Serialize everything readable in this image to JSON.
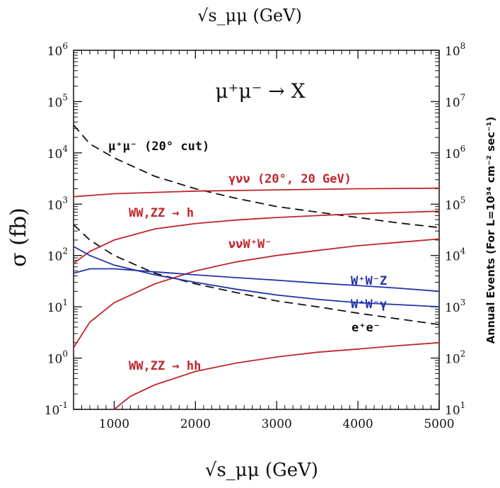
{
  "chart_data": {
    "type": "line",
    "title": "μ⁺μ⁻ → X",
    "top_axis_label": "√s_μμ (GeV)",
    "xlabel": "√s_μμ (GeV)",
    "ylabel": "σ (fb)",
    "y2label": "Annual Events (For L=10³⁴ cm⁻² sec⁻¹)",
    "xlim": [
      500,
      5000
    ],
    "ylim_log10": [
      -1,
      6
    ],
    "y2lim_log10": [
      1,
      8
    ],
    "yscale": "log",
    "x_ticks": [
      1000,
      2000,
      3000,
      4000,
      5000
    ],
    "x_tick_labels": [
      "1000",
      "2000",
      "3000",
      "4000",
      "5000"
    ],
    "y_tick_base": "10",
    "y_tick_exponents": [
      "-1",
      "0",
      "1",
      "2",
      "3",
      "4",
      "5",
      "6"
    ],
    "y2_tick_base": "10",
    "y2_tick_exponents": [
      "1",
      "2",
      "3",
      "4",
      "5",
      "6",
      "7",
      "8"
    ],
    "grid": false,
    "series": [
      {
        "name": "μ⁺μ⁻ (20° cut)",
        "color": "#111111",
        "style": "dashed",
        "x": [
          500,
          700,
          1000,
          1500,
          2000,
          2500,
          3000,
          3500,
          4000,
          4500,
          5000
        ],
        "y": [
          35000,
          15000,
          8000,
          3500,
          2000,
          1300,
          900,
          700,
          550,
          430,
          350
        ]
      },
      {
        "name": "e⁺e⁻",
        "color": "#111111",
        "style": "dashed",
        "x": [
          500,
          700,
          1000,
          1500,
          2000,
          2500,
          3000,
          3500,
          4000,
          4500,
          5000
        ],
        "y": [
          400,
          200,
          100,
          45,
          28,
          19,
          13,
          10,
          7.5,
          5.8,
          4.5
        ]
      },
      {
        "name": "γνν (20°, 20 GeV)",
        "color": "#c0262d",
        "style": "solid",
        "x": [
          500,
          1000,
          2000,
          3000,
          4000,
          5000
        ],
        "y": [
          1400,
          1600,
          1800,
          1900,
          2000,
          2050
        ]
      },
      {
        "name": "WW,ZZ → h",
        "color": "#c0262d",
        "style": "solid",
        "x": [
          500,
          700,
          1000,
          1500,
          2000,
          2500,
          3000,
          3500,
          4000,
          4500,
          5000
        ],
        "y": [
          70,
          120,
          200,
          330,
          420,
          490,
          550,
          600,
          650,
          690,
          730
        ]
      },
      {
        "name": "ννW⁺W⁻",
        "color": "#c0262d",
        "style": "solid",
        "x": [
          500,
          700,
          1000,
          1500,
          2000,
          2500,
          3000,
          3500,
          4000,
          4500,
          5000
        ],
        "y": [
          1.6,
          5,
          12,
          28,
          50,
          75,
          100,
          125,
          155,
          180,
          210
        ]
      },
      {
        "name": "W⁺W⁻Z",
        "color": "#2233aa",
        "style": "solid",
        "x": [
          500,
          700,
          1000,
          1500,
          2000,
          2500,
          3000,
          3500,
          4000,
          4500,
          5000
        ],
        "y": [
          45,
          55,
          55,
          48,
          42,
          37,
          33,
          29,
          26,
          23,
          20
        ]
      },
      {
        "name": "W⁺W⁻γ",
        "color": "#2233aa",
        "style": "solid",
        "x": [
          500,
          700,
          1000,
          1500,
          2000,
          2500,
          3000,
          3500,
          4000,
          4500,
          5000
        ],
        "y": [
          150,
          100,
          65,
          42,
          30,
          22,
          17,
          14,
          12,
          11,
          10
        ]
      },
      {
        "name": "WW,ZZ → hh",
        "color": "#c0262d",
        "style": "solid",
        "x": [
          1000,
          1200,
          1500,
          2000,
          2500,
          3000,
          3500,
          4000,
          4500,
          5000
        ],
        "y": [
          0.1,
          0.18,
          0.3,
          0.55,
          0.8,
          1.05,
          1.3,
          1.5,
          1.75,
          2.0
        ]
      }
    ],
    "annotations": [
      {
        "text": "μ⁺μ⁻ (20° cut)",
        "color": "#111111"
      },
      {
        "text": "γνν (20°, 20 GeV)",
        "color": "#c0262d"
      },
      {
        "text": "WW,ZZ → h",
        "color": "#c0262d"
      },
      {
        "text": "ννW⁺W⁻",
        "color": "#c0262d"
      },
      {
        "text": "W⁺W⁻Z",
        "color": "#2233aa"
      },
      {
        "text": "W⁺W⁻γ",
        "color": "#2233aa"
      },
      {
        "text": "e⁺e⁻",
        "color": "#111111"
      },
      {
        "text": "WW,ZZ → hh",
        "color": "#c0262d"
      }
    ]
  }
}
